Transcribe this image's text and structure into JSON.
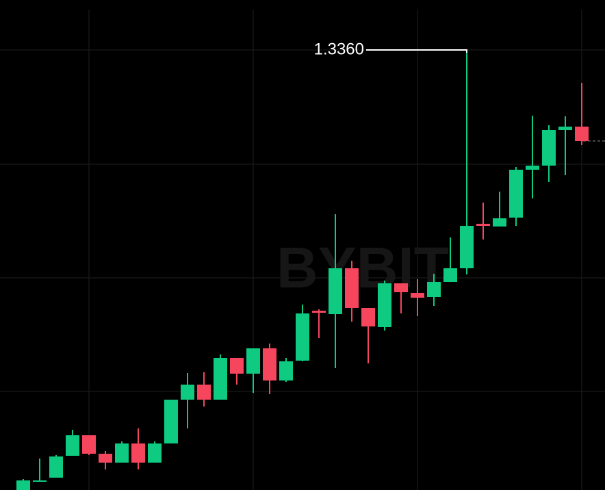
{
  "chart_data": {
    "type": "candlestick",
    "watermark": "BYBIT",
    "annotations": [
      {
        "text": "1.3360"
      }
    ],
    "categories": [
      null,
      null,
      null,
      null,
      null,
      null,
      null,
      null,
      null,
      null,
      null,
      null,
      null,
      null,
      null,
      null,
      null,
      null,
      null,
      null,
      null,
      null,
      null,
      null,
      null,
      null,
      null,
      null,
      null,
      null,
      null,
      null,
      null,
      null,
      null
    ],
    "open": [
      1.2717,
      1.2729,
      1.2735,
      1.2767,
      1.2797,
      1.277,
      1.2757,
      1.2785,
      1.2757,
      1.2785,
      1.2849,
      1.2871,
      1.2849,
      1.291,
      1.2887,
      1.2924,
      1.2877,
      1.2906,
      1.2979,
      1.2974,
      1.3041,
      1.2983,
      1.2955,
      1.3019,
      1.3005,
      1.2999,
      1.3021,
      1.3041,
      1.3106,
      1.3102,
      1.3115,
      1.3185,
      1.3191,
      1.3243,
      1.3248
    ],
    "high": [
      1.2733,
      1.2763,
      1.2768,
      1.2805,
      1.2797,
      1.2774,
      1.2788,
      1.2807,
      1.2788,
      1.2849,
      1.2888,
      1.2889,
      1.2915,
      1.291,
      1.2924,
      1.2931,
      1.291,
      1.2988,
      1.2981,
      1.312,
      1.3052,
      1.2983,
      1.3023,
      1.3019,
      1.3025,
      1.3033,
      1.3086,
      1.336,
      1.3137,
      1.3153,
      1.3189,
      1.3264,
      1.325,
      1.3263,
      1.3312
    ],
    "low": [
      1.2717,
      1.2729,
      1.2735,
      1.2767,
      1.2768,
      1.2747,
      1.2757,
      1.2747,
      1.2757,
      1.2785,
      1.2807,
      1.2839,
      1.2849,
      1.2871,
      1.2859,
      1.2857,
      1.2875,
      1.2905,
      1.2939,
      1.2895,
      1.2963,
      1.2902,
      1.295,
      1.2975,
      1.2971,
      1.2986,
      1.3021,
      1.3032,
      1.3083,
      1.3102,
      1.3103,
      1.3143,
      1.3167,
      1.3177,
      1.3221
    ],
    "close": [
      1.2731,
      1.2731,
      1.2766,
      1.2797,
      1.277,
      1.2757,
      1.2785,
      1.2757,
      1.2785,
      1.2849,
      1.2871,
      1.2849,
      1.291,
      1.2887,
      1.2924,
      1.2877,
      1.2905,
      1.2975,
      1.2976,
      1.3041,
      1.2983,
      1.2956,
      1.3019,
      1.3006,
      1.2998,
      1.3021,
      1.3041,
      1.3103,
      1.3103,
      1.3114,
      1.3185,
      1.3191,
      1.3243,
      1.3248,
      1.3227
    ],
    "up_color": "#0ecb81",
    "down_color": "#f6465d",
    "ylim": [
      1.2717,
      1.3433
    ],
    "yticks": [
      1.336,
      1.3193,
      1.3027,
      1.2861
    ],
    "grid": true
  }
}
